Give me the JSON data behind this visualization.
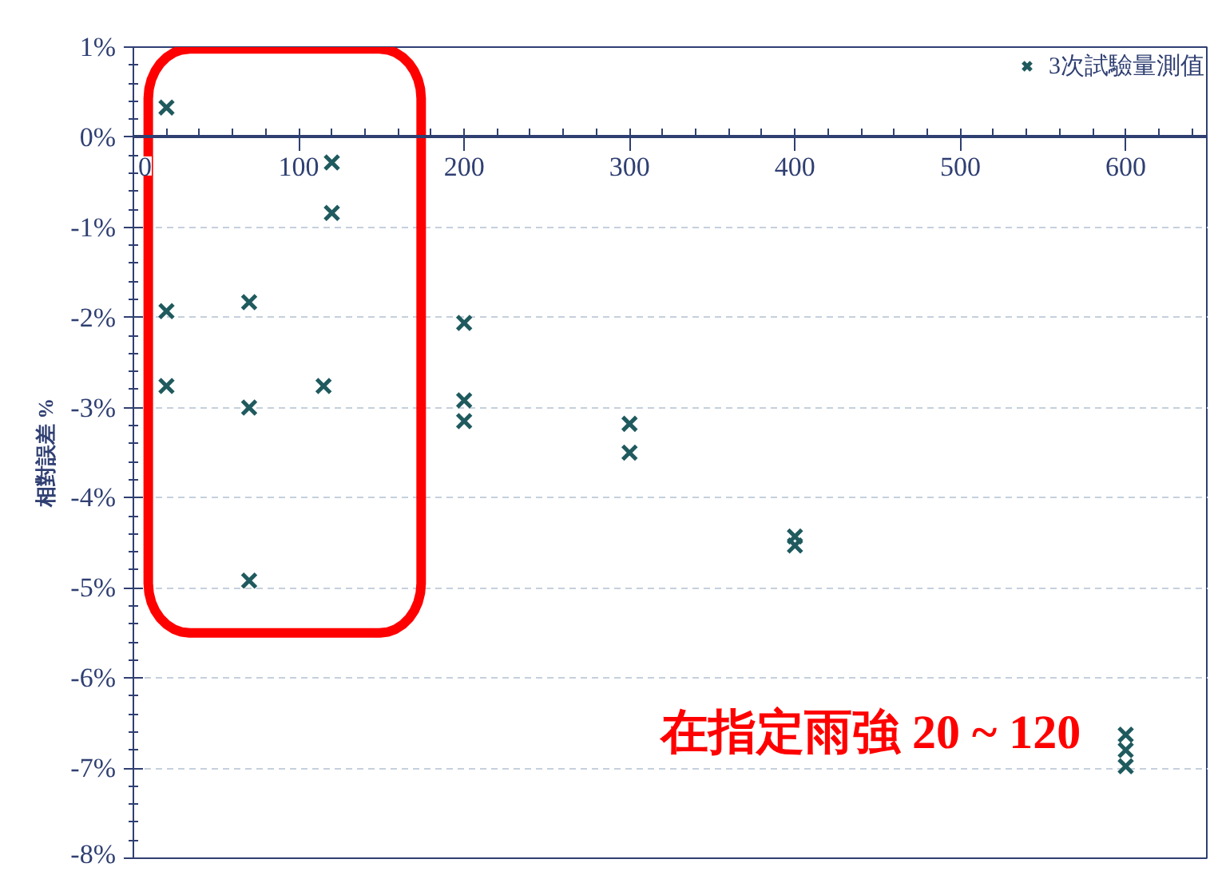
{
  "chart_data": {
    "type": "scatter",
    "ylabel": "相對誤差 %",
    "x": [
      20,
      20,
      20,
      70,
      70,
      70,
      120,
      120,
      115,
      200,
      200,
      200,
      300,
      300,
      400,
      400,
      600,
      600,
      600
    ],
    "series": [
      {
        "name": "3次試驗量測值",
        "color": "#1f5a5e",
        "values": [
          0.33,
          -1.93,
          -2.76,
          -1.83,
          -3.0,
          -4.92,
          -0.28,
          -0.84,
          -2.76,
          -2.06,
          -2.92,
          -3.15,
          -3.18,
          -3.5,
          -4.43,
          -4.53,
          -6.63,
          -6.8,
          -6.98
        ]
      }
    ],
    "xlim": [
      0,
      650
    ],
    "xticks": [
      0,
      100,
      200,
      300,
      400,
      500,
      600
    ],
    "ylim": [
      -8,
      1
    ],
    "yticks": [
      {
        "value": 1,
        "label": "1%"
      },
      {
        "value": 0,
        "label": "0%"
      },
      {
        "value": -1,
        "label": "-1%"
      },
      {
        "value": -2,
        "label": "-2%"
      },
      {
        "value": -3,
        "label": "-3%"
      },
      {
        "value": -4,
        "label": "-4%"
      },
      {
        "value": -5,
        "label": "-5%"
      },
      {
        "value": -6,
        "label": "-6%"
      },
      {
        "value": -7,
        "label": "-7%"
      },
      {
        "value": -8,
        "label": "-8%"
      }
    ],
    "grid": "y",
    "legend": "top right",
    "marker": "cross",
    "annotations": [
      "在指定雨強 20 ~ 120"
    ]
  }
}
